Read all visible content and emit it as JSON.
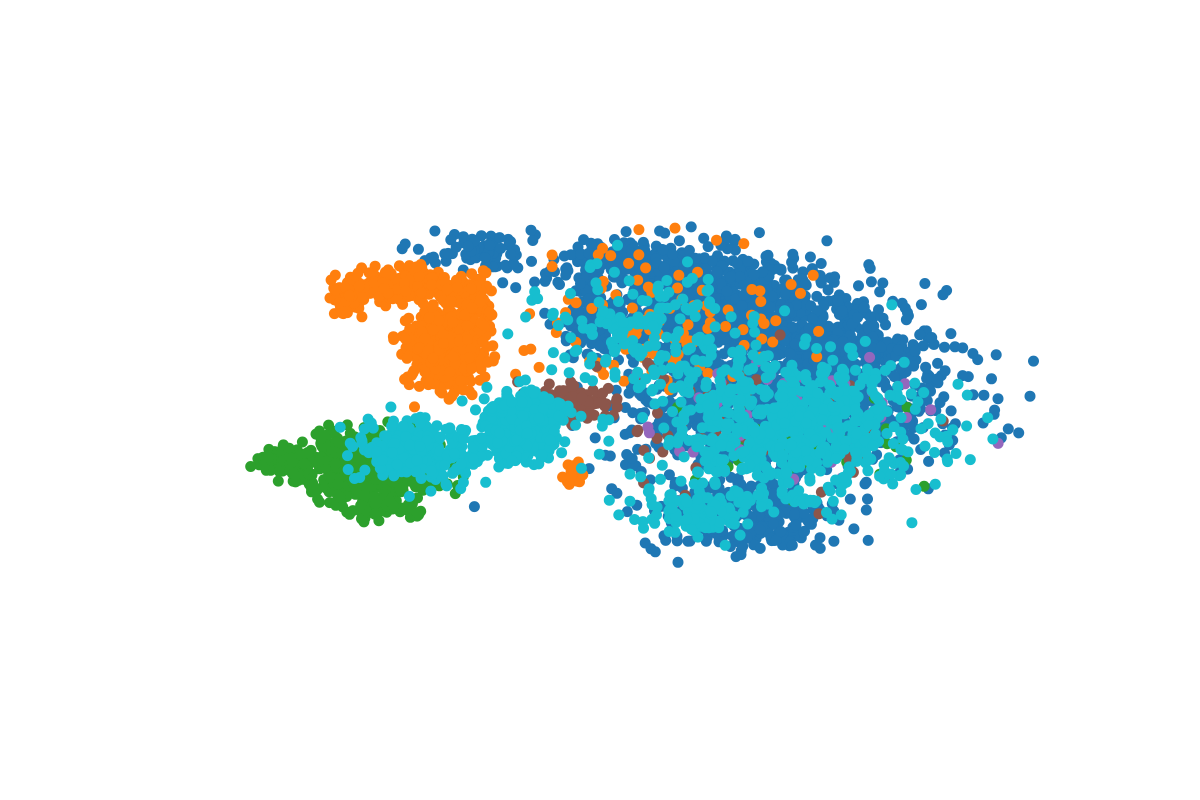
{
  "chart_data": {
    "type": "scatter",
    "title": "",
    "xlabel": "",
    "ylabel": "",
    "axes_visible": false,
    "grid": false,
    "legend": "none",
    "xlim": [
      -100,
      100
    ],
    "ylim": [
      -100,
      100
    ],
    "series": [
      {
        "color": "#1f77b4",
        "clusters": [
          {
            "center": [
              28,
              32
            ],
            "spread": [
              28,
              18
            ],
            "count": 900
          },
          {
            "center": [
              40,
              -2
            ],
            "spread": [
              34,
              22
            ],
            "count": 900
          },
          {
            "center": [
              30,
              -40
            ],
            "spread": [
              20,
              12
            ],
            "count": 260
          },
          {
            "center": [
              4,
              48
            ],
            "spread": [
              22,
              8
            ],
            "count": 220
          },
          {
            "center": [
              -4,
              28
            ],
            "spread": [
              6,
              10
            ],
            "count": 80
          },
          {
            "center": [
              58,
              20
            ],
            "spread": [
              18,
              12
            ],
            "count": 160
          },
          {
            "center": [
              -32,
              54
            ],
            "spread": [
              10,
              6
            ],
            "count": 70
          }
        ]
      },
      {
        "color": "#ff7f0e",
        "clusters": [
          {
            "center": [
              -40,
              20
            ],
            "spread": [
              8,
              13
            ],
            "count": 550
          },
          {
            "center": [
              -50,
              42
            ],
            "spread": [
              9,
              5
            ],
            "count": 180
          },
          {
            "center": [
              -63,
              37
            ],
            "spread": [
              4,
              6
            ],
            "count": 70
          },
          {
            "center": [
              -34,
              38
            ],
            "spread": [
              6,
              8
            ],
            "count": 80
          },
          {
            "center": [
              10,
              30
            ],
            "spread": [
              30,
              22
            ],
            "count": 110
          },
          {
            "center": [
              -10,
              -24
            ],
            "spread": [
              2,
              4
            ],
            "count": 20
          }
        ]
      },
      {
        "color": "#2ca02c",
        "clusters": [
          {
            "center": [
              -57,
              -21
            ],
            "spread": [
              15,
              9
            ],
            "count": 650
          },
          {
            "center": [
              -78,
              -20
            ],
            "spread": [
              5,
              4
            ],
            "count": 90
          },
          {
            "center": [
              -55,
              -36
            ],
            "spread": [
              10,
              4
            ],
            "count": 60
          },
          {
            "center": [
              40,
              -10
            ],
            "spread": [
              28,
              18
            ],
            "count": 40
          }
        ]
      },
      {
        "color": "#8c564b",
        "clusters": [
          {
            "center": [
              -10,
              1
            ],
            "spread": [
              8,
              5
            ],
            "count": 120
          },
          {
            "center": [
              30,
              -10
            ],
            "spread": [
              35,
              25
            ],
            "count": 60
          }
        ]
      },
      {
        "color": "#9467bd",
        "clusters": [
          {
            "center": [
              40,
              -6
            ],
            "spread": [
              32,
              20
            ],
            "count": 50
          }
        ]
      },
      {
        "color": "#17becf",
        "clusters": [
          {
            "center": [
              -22,
              -8
            ],
            "spread": [
              8,
              10
            ],
            "count": 500
          },
          {
            "center": [
              -46,
              -16
            ],
            "spread": [
              14,
              10
            ],
            "count": 260
          },
          {
            "center": [
              40,
              -8
            ],
            "spread": [
              30,
              22
            ],
            "count": 650
          },
          {
            "center": [
              8,
              26
            ],
            "spread": [
              24,
              18
            ],
            "count": 160
          },
          {
            "center": [
              18,
              -38
            ],
            "spread": [
              14,
              8
            ],
            "count": 120
          },
          {
            "center": [
              45,
              -34
            ],
            "spread": [
              3,
              1
            ],
            "count": 12
          }
        ]
      }
    ]
  }
}
